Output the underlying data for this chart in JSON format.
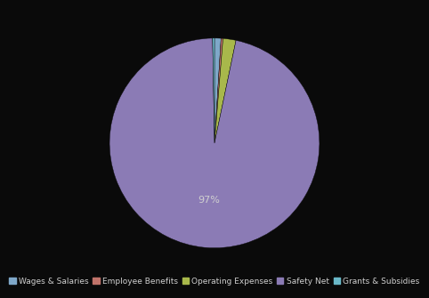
{
  "labels": [
    "Wages & Salaries",
    "Employee Benefits",
    "Operating Expenses",
    "Safety Net",
    "Grants & Subsidies"
  ],
  "values": [
    1,
    0.3,
    2,
    97,
    0.3
  ],
  "colors": [
    "#7fa8c9",
    "#c0736a",
    "#a8b84b",
    "#8b7bb5",
    "#6ab8c8"
  ],
  "background_color": "#0a0a0a",
  "text_color": "#d0d0d0",
  "legend_fontsize": 6.5,
  "figsize": [
    4.82,
    3.35
  ],
  "dpi": 100,
  "startangle": 90,
  "pctdistance": 0.55
}
